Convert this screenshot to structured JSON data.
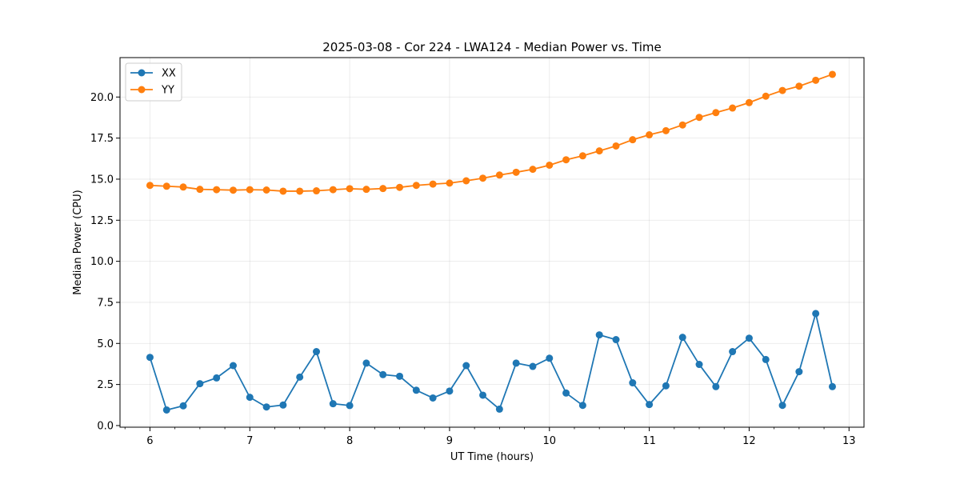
{
  "chart_data": {
    "type": "line",
    "title": "2025-03-08 - Cor 224 - LWA124 - Median Power vs. Time",
    "xlabel": "UT Time (hours)",
    "ylabel": "Median Power (CPU)",
    "xlim": [
      5.7,
      13.15
    ],
    "ylim": [
      -0.1,
      22.4
    ],
    "xticks": [
      6,
      7,
      8,
      9,
      10,
      11,
      12,
      13
    ],
    "xtick_labels": [
      "6",
      "7",
      "8",
      "9",
      "10",
      "11",
      "12",
      "13"
    ],
    "yticks": [
      0,
      2.5,
      5,
      7.5,
      10,
      12.5,
      15,
      17.5,
      20
    ],
    "ytick_labels": [
      "0.0",
      "2.5",
      "5.0",
      "7.5",
      "10.0",
      "12.5",
      "15.0",
      "17.5",
      "20.0"
    ],
    "grid": true,
    "legend_position": "upper-left",
    "x": [
      6.0,
      6.1667,
      6.3333,
      6.5,
      6.6667,
      6.8333,
      7.0,
      7.1667,
      7.3333,
      7.5,
      7.6667,
      7.8333,
      8.0,
      8.1667,
      8.3333,
      8.5,
      8.6667,
      8.8333,
      9.0,
      9.1667,
      9.3333,
      9.5,
      9.6667,
      9.8333,
      10.0,
      10.1667,
      10.3333,
      10.5,
      10.6667,
      10.8333,
      11.0,
      11.1667,
      11.3333,
      11.5,
      11.6667,
      11.8333,
      12.0,
      12.1667,
      12.3333,
      12.5,
      12.6667,
      12.8333
    ],
    "series": [
      {
        "name": "XX",
        "color": "#1f77b4",
        "values": [
          4.15,
          0.95,
          1.2,
          2.55,
          2.9,
          3.65,
          1.72,
          1.13,
          1.25,
          2.95,
          4.5,
          1.33,
          1.22,
          3.8,
          3.1,
          3.0,
          2.15,
          1.68,
          2.1,
          3.65,
          1.85,
          1.0,
          3.8,
          3.6,
          4.1,
          1.98,
          1.23,
          5.52,
          5.23,
          2.6,
          1.28,
          2.42,
          5.37,
          3.72,
          2.37,
          4.5,
          5.32,
          4.02,
          1.23,
          3.28,
          6.82,
          2.37
        ]
      },
      {
        "name": "YY",
        "color": "#ff7f0e",
        "values": [
          14.62,
          14.57,
          14.52,
          14.38,
          14.36,
          14.33,
          14.36,
          14.34,
          14.27,
          14.27,
          14.29,
          14.36,
          14.42,
          14.38,
          14.43,
          14.5,
          14.62,
          14.7,
          14.76,
          14.9,
          15.06,
          15.25,
          15.42,
          15.6,
          15.85,
          16.18,
          16.42,
          16.72,
          17.02,
          17.4,
          17.7,
          17.95,
          18.3,
          18.76,
          19.05,
          19.33,
          19.66,
          20.05,
          20.4,
          20.66,
          21.02,
          21.38
        ]
      }
    ]
  }
}
